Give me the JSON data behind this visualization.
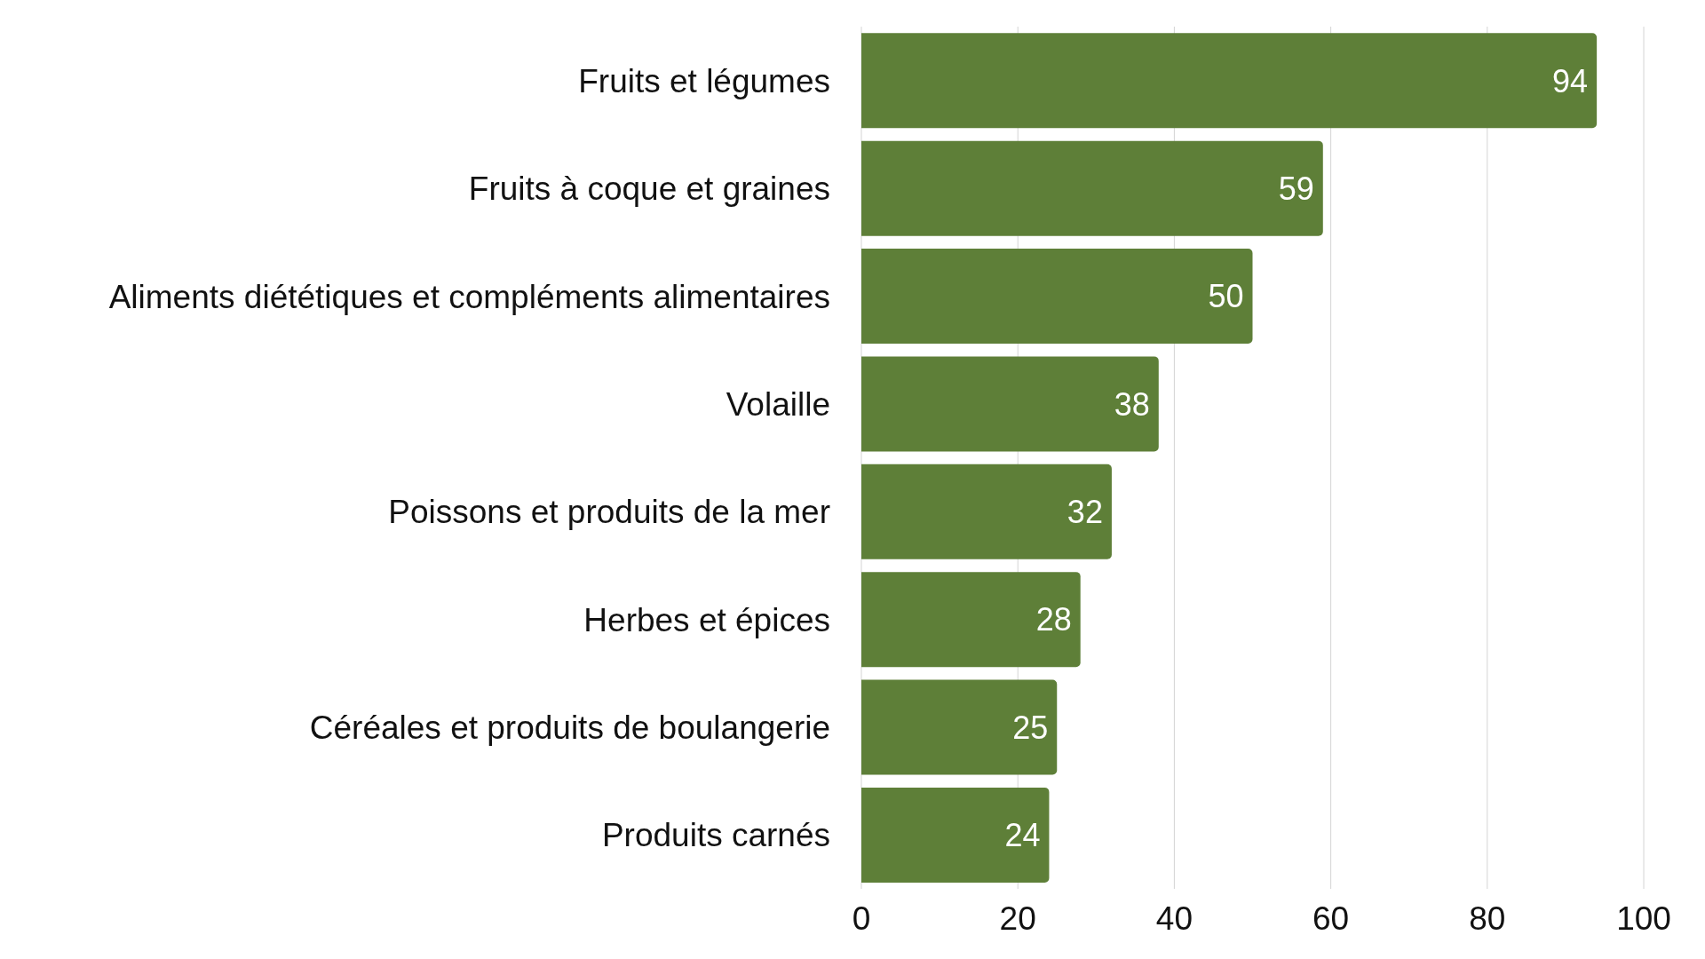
{
  "chart_data": {
    "type": "bar",
    "orientation": "horizontal",
    "categories": [
      "Fruits et légumes",
      "Fruits à coque et graines",
      "Aliments diététiques et compléments alimentaires",
      "Volaille",
      "Poissons et produits de la mer",
      "Herbes et épices",
      "Céréales et produits de boulangerie",
      "Produits carnés"
    ],
    "values": [
      94,
      59,
      50,
      38,
      32,
      28,
      25,
      24
    ],
    "color": "#5e7f38",
    "xlim": [
      0,
      100
    ],
    "xticks": [
      0,
      20,
      40,
      60,
      80,
      100
    ],
    "grid": "x",
    "data_labels": true
  }
}
